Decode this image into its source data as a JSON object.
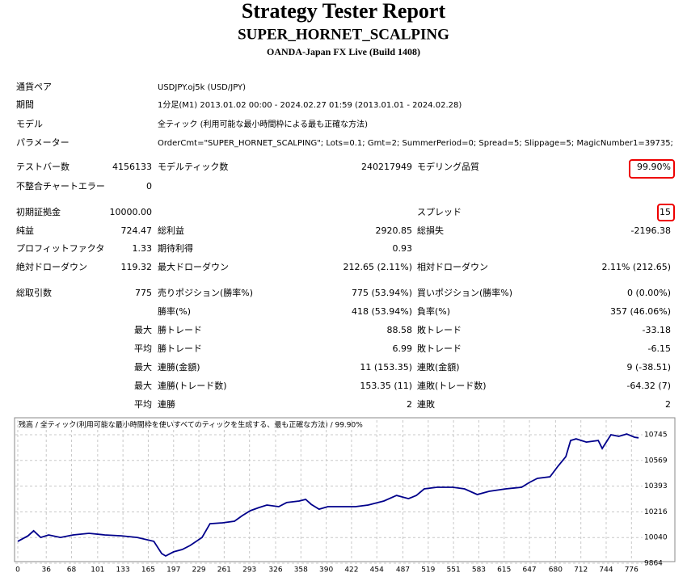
{
  "header": {
    "title": "Strategy Tester Report",
    "subtitle": "SUPER_HORNET_SCALPING",
    "server": "OANDA-Japan FX Live (Build 1408)"
  },
  "info": [
    [
      "通貨ペア",
      "USDJPY.oj5k (USD/JPY)"
    ],
    [
      "期間",
      "1分足(M1) 2013.01.02 00:00 - 2024.02.27 01:59 (2013.01.01 - 2024.02.28)"
    ],
    [
      "モデル",
      "全ティック (利用可能な最小時間枠による最も正確な方法)"
    ],
    [
      "パラメーター",
      "OrderCmt=\"SUPER_HORNET_SCALPING\"; Lots=0.1; Gmt=2; SummerPeriod=0; Spread=5; Slippage=5; MagicNumber1=39735;"
    ]
  ],
  "stats": [
    [
      "テストバー数",
      "4156133",
      "モデルティック数",
      "240217949",
      "モデリング品質",
      "99.90%"
    ],
    [
      "不整合チャートエラー",
      "0",
      null,
      null,
      null,
      null
    ],
    [
      "初期証拠金",
      "10000.00",
      null,
      null,
      "スプレッド",
      "15"
    ],
    [
      "純益",
      "724.47",
      "総利益",
      "2920.85",
      "総損失",
      "-2196.38"
    ],
    [
      "プロフィットファクタ",
      "1.33",
      "期待利得",
      "0.93",
      null,
      null
    ],
    [
      "絶対ドローダウン",
      "119.32",
      "最大ドローダウン",
      "212.65 (2.11%)",
      "相対ドローダウン",
      "2.11% (212.65)"
    ],
    [
      "総取引数",
      "775",
      "売りポジション(勝率%)",
      "775 (53.94%)",
      "買いポジション(勝率%)",
      "0 (0.00%)"
    ],
    [
      null,
      null,
      "勝率(%)",
      "418 (53.94%)",
      "負率(%)",
      "357 (46.06%)"
    ],
    [
      null,
      "最大",
      "勝トレード",
      "88.58",
      "敗トレード",
      "-33.18"
    ],
    [
      null,
      "平均",
      "勝トレード",
      "6.99",
      "敗トレード",
      "-6.15"
    ],
    [
      null,
      "最大",
      "連勝(金額)",
      "11 (153.35)",
      "連敗(金額)",
      "9 (-38.51)"
    ],
    [
      null,
      "最大",
      "連勝(トレード数)",
      "153.35 (11)",
      "連敗(トレード数)",
      "-64.32 (7)"
    ],
    [
      null,
      "平均",
      "連勝",
      "2",
      "連敗",
      "2"
    ]
  ],
  "chart": {
    "type": "line",
    "title": "残高 / 全ティック(利用可能な最小時間枠を使いすべてのティックを生成する、最も正確な方法) / 99.90%",
    "color": "#00008b",
    "x": [
      0,
      13,
      20,
      29,
      39,
      54,
      70,
      90,
      110,
      131,
      151,
      172,
      182,
      187,
      197,
      208,
      218,
      233,
      243,
      259,
      274,
      284,
      294,
      305,
      315,
      330,
      340,
      356,
      364,
      371,
      381,
      392,
      407,
      427,
      443,
      463,
      479,
      494,
      504,
      514,
      530,
      550,
      565,
      581,
      596,
      617,
      637,
      647,
      657,
      673,
      683,
      693,
      699,
      706,
      719,
      734,
      739,
      750,
      760,
      770,
      780,
      785
    ],
    "values": [
      10014,
      10052,
      10086,
      10041,
      10058,
      10041,
      10058,
      10069,
      10058,
      10052,
      10041,
      10014,
      9930,
      9914,
      9942,
      9958,
      9986,
      10041,
      10135,
      10141,
      10152,
      10191,
      10224,
      10246,
      10263,
      10252,
      10280,
      10291,
      10302,
      10268,
      10235,
      10252,
      10252,
      10252,
      10263,
      10291,
      10329,
      10307,
      10329,
      10374,
      10385,
      10385,
      10374,
      10335,
      10357,
      10374,
      10385,
      10418,
      10446,
      10457,
      10529,
      10595,
      10706,
      10717,
      10695,
      10706,
      10651,
      10745,
      10734,
      10750,
      10728,
      10724
    ],
    "xlim": [
      0,
      790
    ],
    "ylim": [
      9864,
      10845
    ],
    "xticks": [
      0,
      36,
      68,
      101,
      133,
      165,
      197,
      229,
      261,
      293,
      326,
      358,
      390,
      422,
      454,
      487,
      519,
      551,
      583,
      615,
      647,
      680,
      712,
      744,
      776
    ],
    "yticks": [
      9864,
      10040,
      10216,
      10393,
      10569,
      10745
    ],
    "grid": true
  }
}
